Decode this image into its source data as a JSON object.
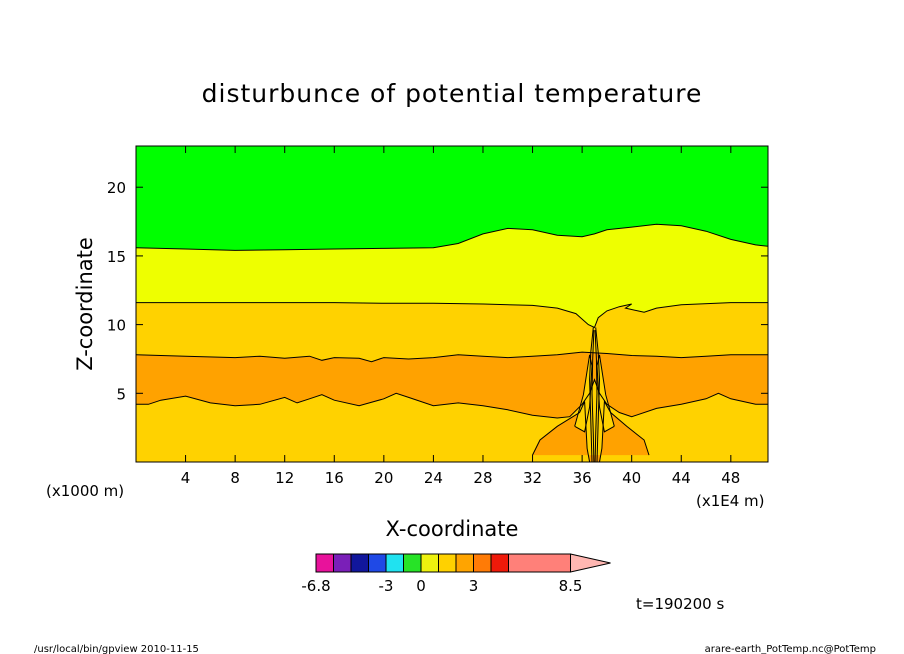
{
  "chart_data": {
    "type": "heatmap",
    "title": "disturbunce of potential temperature",
    "xlabel": "X-coordinate",
    "ylabel": "Z-coordinate",
    "x_unit": "(x1E4 m)",
    "y_unit": "(x1000 m)",
    "xlim": [
      0,
      51
    ],
    "ylim": [
      0,
      23
    ],
    "x_ticks": [
      4,
      8,
      12,
      16,
      20,
      24,
      28,
      32,
      36,
      40,
      44,
      48
    ],
    "y_ticks": [
      5,
      10,
      15,
      20
    ],
    "time_label": "t=190200 s",
    "colorbar": {
      "colors": [
        "#e8129b",
        "#7a1fb8",
        "#11169c",
        "#1f49e6",
        "#20e2f0",
        "#27e327",
        "#eef20f",
        "#ffd100",
        "#ffa400",
        "#ff7b06",
        "#ef1a0a",
        "#ff8079",
        "#ffb7b2"
      ],
      "labels": [
        {
          "value": -6.8,
          "text": "-6.8"
        },
        {
          "value": -3,
          "text": "-3"
        },
        {
          "value": 0,
          "text": "0"
        },
        {
          "value": 3,
          "text": "3"
        },
        {
          "value": 8.5,
          "text": "8.5"
        }
      ]
    },
    "bands": [
      {
        "color": "#00ff00",
        "note": "top"
      },
      {
        "color": "#eeff00"
      },
      {
        "color": "#ffd200"
      },
      {
        "color": "#ffa200"
      },
      {
        "color": "#ffd200",
        "note": "bottom"
      }
    ],
    "contours": {
      "c1": [
        [
          0,
          15.6
        ],
        [
          4,
          15.5
        ],
        [
          8,
          15.4
        ],
        [
          12,
          15.45
        ],
        [
          16,
          15.5
        ],
        [
          20,
          15.55
        ],
        [
          24,
          15.6
        ],
        [
          26,
          15.9
        ],
        [
          28,
          16.6
        ],
        [
          30,
          17.0
        ],
        [
          32,
          16.9
        ],
        [
          34,
          16.5
        ],
        [
          36,
          16.4
        ],
        [
          37,
          16.6
        ],
        [
          38,
          16.9
        ],
        [
          40,
          17.1
        ],
        [
          42,
          17.3
        ],
        [
          44,
          17.2
        ],
        [
          46,
          16.8
        ],
        [
          48,
          16.2
        ],
        [
          50,
          15.8
        ],
        [
          51,
          15.7
        ]
      ],
      "c2": [
        [
          0,
          11.6
        ],
        [
          4,
          11.6
        ],
        [
          8,
          11.6
        ],
        [
          12,
          11.6
        ],
        [
          16,
          11.6
        ],
        [
          20,
          11.55
        ],
        [
          24,
          11.55
        ],
        [
          28,
          11.5
        ],
        [
          32,
          11.4
        ],
        [
          34,
          11.2
        ],
        [
          35.5,
          10.8
        ],
        [
          36.5,
          10.0
        ],
        [
          37,
          9.8
        ],
        [
          37.3,
          10.5
        ],
        [
          38,
          11.0
        ],
        [
          39,
          11.3
        ],
        [
          40,
          11.5
        ],
        [
          39.5,
          11.2
        ],
        [
          40.5,
          11.0
        ],
        [
          41,
          10.9
        ],
        [
          42,
          11.2
        ],
        [
          44,
          11.45
        ],
        [
          48,
          11.6
        ],
        [
          51,
          11.6
        ]
      ],
      "c3": [
        [
          0,
          7.8
        ],
        [
          4,
          7.7
        ],
        [
          8,
          7.6
        ],
        [
          10,
          7.7
        ],
        [
          12,
          7.55
        ],
        [
          14,
          7.7
        ],
        [
          15,
          7.4
        ],
        [
          16,
          7.6
        ],
        [
          18,
          7.55
        ],
        [
          19,
          7.3
        ],
        [
          20,
          7.6
        ],
        [
          22,
          7.5
        ],
        [
          24,
          7.6
        ],
        [
          26,
          7.8
        ],
        [
          28,
          7.7
        ],
        [
          30,
          7.6
        ],
        [
          32,
          7.7
        ],
        [
          34,
          7.8
        ],
        [
          36,
          8.0
        ],
        [
          38,
          7.9
        ],
        [
          40,
          7.75
        ],
        [
          42,
          7.7
        ],
        [
          44,
          7.6
        ],
        [
          46,
          7.7
        ],
        [
          48,
          7.8
        ],
        [
          51,
          7.8
        ]
      ],
      "c4": [
        [
          0,
          4.2
        ],
        [
          1,
          4.2
        ],
        [
          2,
          4.5
        ],
        [
          4,
          4.8
        ],
        [
          6,
          4.3
        ],
        [
          8,
          4.1
        ],
        [
          10,
          4.2
        ],
        [
          12,
          4.7
        ],
        [
          13,
          4.3
        ],
        [
          14,
          4.6
        ],
        [
          15,
          4.9
        ],
        [
          16,
          4.5
        ],
        [
          18,
          4.1
        ],
        [
          20,
          4.6
        ],
        [
          21,
          5.0
        ],
        [
          22,
          4.7
        ],
        [
          24,
          4.1
        ],
        [
          26,
          4.3
        ],
        [
          28,
          4.1
        ],
        [
          30,
          3.8
        ],
        [
          32,
          3.4
        ],
        [
          34,
          3.2
        ],
        [
          35,
          3.3
        ],
        [
          36,
          4.2
        ],
        [
          36.6,
          5.0
        ],
        [
          37,
          6.0
        ],
        [
          37.4,
          5.0
        ],
        [
          38,
          4.2
        ],
        [
          39,
          3.6
        ],
        [
          40,
          3.3
        ],
        [
          42,
          3.9
        ],
        [
          44,
          4.2
        ],
        [
          46,
          4.6
        ],
        [
          47,
          5.0
        ],
        [
          48,
          4.6
        ],
        [
          50,
          4.2
        ],
        [
          51,
          4.2
        ]
      ],
      "c5": [
        [
          32,
          0.5
        ],
        [
          32.6,
          1.6
        ],
        [
          34,
          2.6
        ],
        [
          35.8,
          3.6
        ],
        [
          36.2,
          4.4
        ],
        [
          36.4,
          1.0
        ],
        [
          36.6,
          0
        ],
        [
          37.4,
          0
        ],
        [
          37.6,
          1.0
        ],
        [
          37.8,
          4.4
        ],
        [
          38.3,
          3.6
        ],
        [
          39.6,
          2.6
        ],
        [
          41,
          1.6
        ],
        [
          41.4,
          0.5
        ]
      ],
      "c6": [
        [
          35.4,
          2.6
        ],
        [
          36.1,
          4.9
        ],
        [
          36.6,
          7.8
        ],
        [
          36.8,
          7.0
        ],
        [
          36.6,
          4.0
        ],
        [
          36.2,
          2.2
        ],
        [
          35.4,
          2.6
        ]
      ],
      "c7": [
        [
          38.6,
          2.6
        ],
        [
          37.9,
          4.9
        ],
        [
          37.4,
          7.8
        ],
        [
          37.2,
          7.0
        ],
        [
          37.4,
          4.0
        ],
        [
          37.8,
          2.2
        ],
        [
          38.6,
          2.6
        ]
      ],
      "c8": [
        [
          36.9,
          9.8
        ],
        [
          36.7,
          8.0
        ],
        [
          36.6,
          6.0
        ],
        [
          36.7,
          3.0
        ],
        [
          36.8,
          0
        ]
      ],
      "c9": [
        [
          37.1,
          9.8
        ],
        [
          37.3,
          8.0
        ],
        [
          37.4,
          6.0
        ],
        [
          37.3,
          3.0
        ],
        [
          37.2,
          0
        ]
      ],
      "c10": [
        [
          36.95,
          9.6
        ],
        [
          36.85,
          7.5
        ],
        [
          36.8,
          5.0
        ],
        [
          36.9,
          2.0
        ],
        [
          36.95,
          0
        ]
      ],
      "c11": [
        [
          37.05,
          9.6
        ],
        [
          37.15,
          7.5
        ],
        [
          37.2,
          5.0
        ],
        [
          37.1,
          2.0
        ],
        [
          37.05,
          0
        ]
      ]
    }
  },
  "footer": {
    "left": "/usr/local/bin/gpview  2010-11-15",
    "right": "arare-earth_PotTemp.nc@PotTemp"
  }
}
